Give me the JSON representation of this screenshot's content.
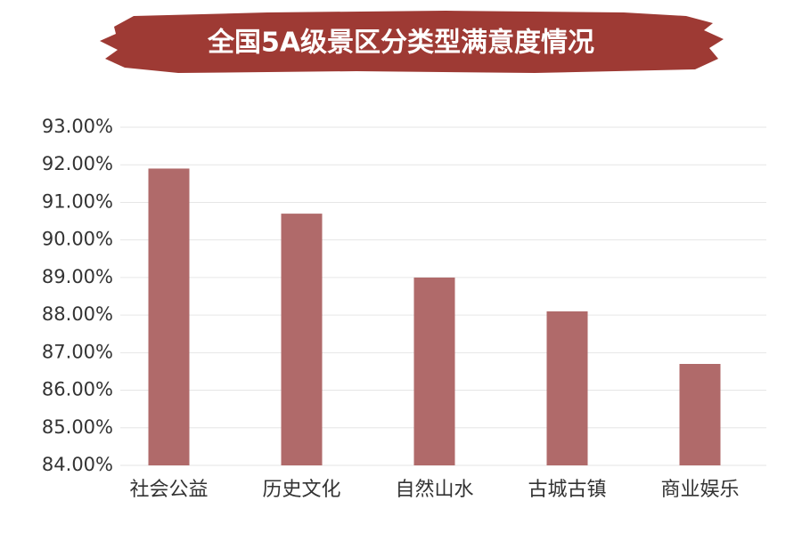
{
  "chart_data": {
    "type": "bar",
    "title": "全国5A级景区分类型满意度情况",
    "categories": [
      "社会公益",
      "历史文化",
      "自然山水",
      "古城古镇",
      "商业娱乐"
    ],
    "values": [
      91.9,
      90.7,
      89.0,
      88.1,
      86.7
    ],
    "color": "#b06a6a",
    "title_color": "#9e3a34",
    "ylim": [
      84,
      93
    ],
    "yticks": [
      {
        "value": 84,
        "label": "84.00%"
      },
      {
        "value": 85,
        "label": "85.00%"
      },
      {
        "value": 86,
        "label": "86.00%"
      },
      {
        "value": 87,
        "label": "87.00%"
      },
      {
        "value": 88,
        "label": "88.00%"
      },
      {
        "value": 89,
        "label": "89.00%"
      },
      {
        "value": 90,
        "label": "90.00%"
      },
      {
        "value": 91,
        "label": "91.00%"
      },
      {
        "value": 92,
        "label": "92.00%"
      },
      {
        "value": 93,
        "label": "93.00%"
      }
    ],
    "grid": true
  }
}
